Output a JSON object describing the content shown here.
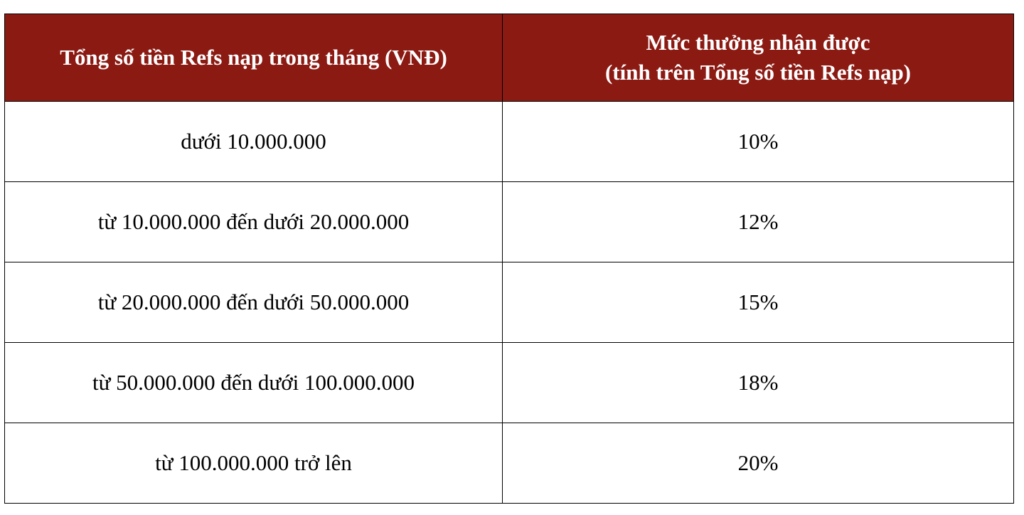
{
  "colors": {
    "header_bg": "#8b1a13",
    "header_text": "#ffffff",
    "cell_text": "#000000",
    "border": "#000000"
  },
  "table": {
    "headers": {
      "col1": "Tổng số tiền Refs nạp trong tháng (VNĐ)",
      "col2_line1": "Mức thưởng nhận được",
      "col2_line2": "(tính trên Tổng số tiền Refs nạp)"
    },
    "rows": [
      {
        "amount": "dưới 10.000.000",
        "reward": "10%"
      },
      {
        "amount": "từ 10.000.000 đến dưới 20.000.000",
        "reward": "12%"
      },
      {
        "amount": "từ 20.000.000 đến dưới 50.000.000",
        "reward": "15%"
      },
      {
        "amount": "từ 50.000.000 đến dưới 100.000.000",
        "reward": "18%"
      },
      {
        "amount": "từ 100.000.000 trở lên",
        "reward": "20%"
      }
    ]
  }
}
